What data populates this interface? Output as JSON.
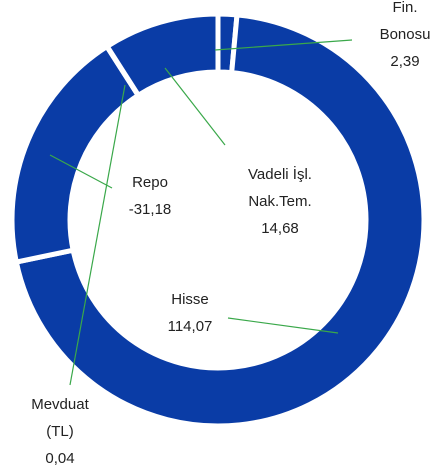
{
  "chart_data": {
    "type": "donut",
    "categories": [
      "Fin.\nBonosu",
      "Hisse",
      "Repo",
      "Mevduat\n(TL)",
      "Vadeli İşl.\nNak.Tem."
    ],
    "values": [
      2.39,
      114.07,
      -31.18,
      0.04,
      14.68
    ],
    "value_labels": [
      "2,39",
      "114,07",
      "-31,18",
      "0,04",
      "14,68"
    ],
    "color": "#0a3ca6",
    "leader_color": "#3aa84a"
  }
}
